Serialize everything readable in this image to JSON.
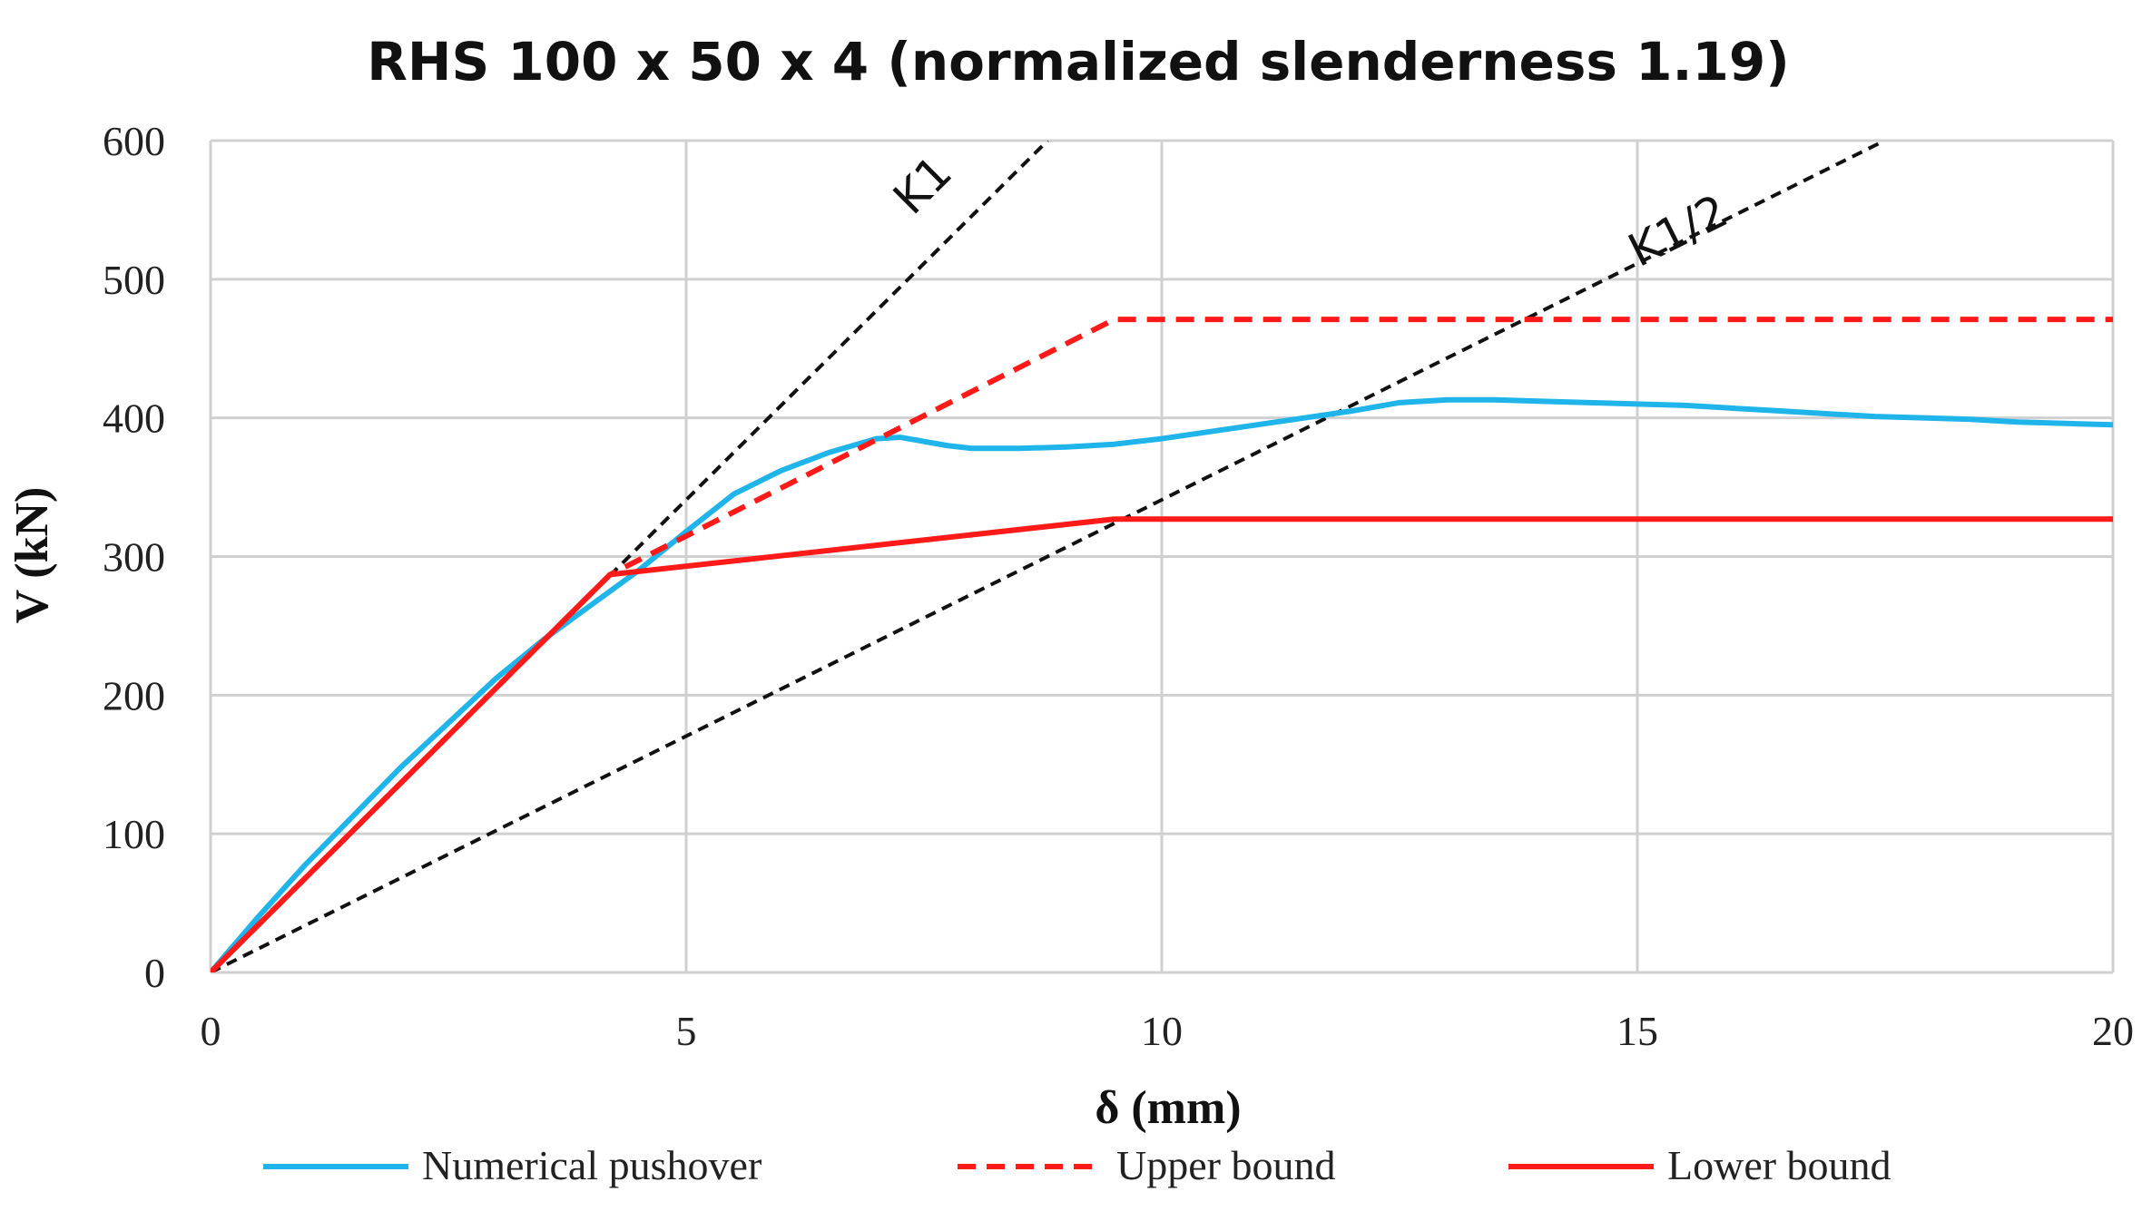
{
  "chart_data": {
    "type": "line",
    "title": "RHS 100 x 50 x 4 (normalized slenderness 1.19)",
    "xlabel": "δ (mm)",
    "ylabel": "V (kN)",
    "xlim": [
      0,
      20
    ],
    "ylim": [
      0,
      600
    ],
    "xticks": [
      0,
      5,
      10,
      15,
      20
    ],
    "yticks": [
      0,
      100,
      200,
      300,
      400,
      500,
      600
    ],
    "grid": true,
    "legend_position": "bottom",
    "series": [
      {
        "name": "Numerical pushover",
        "color": "#1fb4ea",
        "style": "solid",
        "x": [
          0,
          0.5,
          1,
          1.5,
          2,
          2.5,
          3,
          3.5,
          4,
          4.5,
          5,
          5.5,
          6,
          6.5,
          7,
          7.25,
          7.5,
          7.75,
          8,
          8.5,
          9,
          9.5,
          10,
          10.5,
          11,
          11.5,
          12,
          12.5,
          13,
          13.5,
          14,
          14.5,
          15,
          15.5,
          16,
          16.5,
          17,
          17.5,
          18,
          18.5,
          19,
          19.5,
          20
        ],
        "y": [
          0,
          40,
          78,
          113,
          148,
          180,
          212,
          240,
          265,
          290,
          318,
          345,
          362,
          375,
          385,
          386,
          383,
          380,
          378,
          378,
          379,
          381,
          385,
          390,
          395,
          400,
          405,
          411,
          413,
          413,
          412,
          411,
          410,
          409,
          407,
          405,
          403,
          401,
          400,
          399,
          397,
          396,
          395
        ]
      },
      {
        "name": "Upper bound",
        "color": "#ff1a1a",
        "style": "dashed",
        "x": [
          0,
          4.2,
          9.5,
          20
        ],
        "y": [
          0,
          287,
          471,
          471
        ]
      },
      {
        "name": "Lower bound",
        "color": "#ff1a1a",
        "style": "solid",
        "x": [
          0,
          4.2,
          9.5,
          20
        ],
        "y": [
          0,
          287,
          327,
          327
        ]
      }
    ],
    "reference_lines": [
      {
        "label": "K1",
        "color": "#111111",
        "style": "dashed",
        "x": [
          0,
          8.8
        ],
        "y": [
          0,
          600
        ]
      },
      {
        "label": "K1/2",
        "color": "#111111",
        "style": "dashed",
        "x": [
          0,
          17.6
        ],
        "y": [
          0,
          600
        ]
      }
    ]
  }
}
